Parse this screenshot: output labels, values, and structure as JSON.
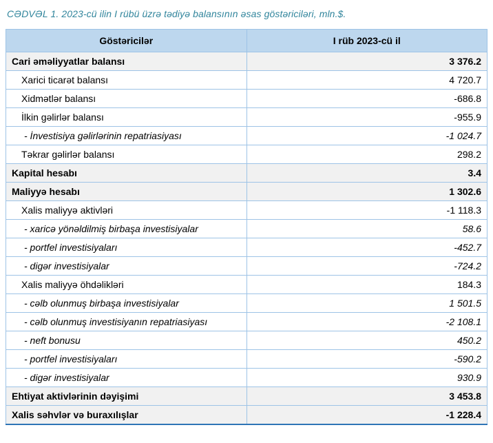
{
  "title": "CƏDVƏL 1. 2023-cü ilin I rübü üzrə tədiyə balansının əsas göstəriciləri, mln.$.",
  "colors": {
    "title_color": "#31859C",
    "header_bg": "#BDD7EE",
    "grid_border": "#9DC3E6",
    "bold_row_bg": "#F1F1F1",
    "bottom_border": "#2E75B6"
  },
  "table": {
    "columns": [
      "Göstəricilər",
      "I rüb 2023-cü il"
    ],
    "rows": [
      {
        "label": "Cari əməliyyatlar balansı",
        "value": "3 376.2",
        "style": "bold"
      },
      {
        "label": "Xarici ticarət balansı",
        "value": "4 720.7",
        "style": "normal"
      },
      {
        "label": "Xidmətlər balansı",
        "value": "-686.8",
        "style": "normal"
      },
      {
        "label": "İlkin gəlirlər balansı",
        "value": "-955.9",
        "style": "normal"
      },
      {
        "label": "- İnvestisiya gəlirlərinin repatriasiyası",
        "value": "-1 024.7",
        "style": "italic"
      },
      {
        "label": "Təkrar gəlirlər balansı",
        "value": "298.2",
        "style": "normal"
      },
      {
        "label": "Kapital hesabı",
        "value": "3.4",
        "style": "bold"
      },
      {
        "label": "Maliyyə hesabı",
        "value": "1 302.6",
        "style": "bold"
      },
      {
        "label": "Xalis maliyyə aktivləri",
        "value": "-1 118.3",
        "style": "normal"
      },
      {
        "label": "- xaricə yönəldilmiş birbaşa investisiyalar",
        "value": "58.6",
        "style": "italic"
      },
      {
        "label": "- portfel investisiyaları",
        "value": "-452.7",
        "style": "italic"
      },
      {
        "label": "- digər investisiyalar",
        "value": "-724.2",
        "style": "italic"
      },
      {
        "label": "Xalis maliyyə öhdəlikləri",
        "value": "184.3",
        "style": "normal"
      },
      {
        "label": "- cəlb olunmuş birbaşa investisiyalar",
        "value": "1 501.5",
        "style": "italic"
      },
      {
        "label": "- cəlb olunmuş investisiyanın repatriasiyası",
        "value": "-2 108.1",
        "style": "italic"
      },
      {
        "label": "- neft bonusu",
        "value": "450.2",
        "style": "italic"
      },
      {
        "label": "- portfel investisiyaları",
        "value": "-590.2",
        "style": "italic"
      },
      {
        "label": "- digər investisiyalar",
        "value": "930.9",
        "style": "italic"
      },
      {
        "label": "Ehtiyat aktivlərinin dəyişimi",
        "value": "3 453.8",
        "style": "bold"
      },
      {
        "label": "Xalis səhvlər və buraxılışlar",
        "value": "-1 228.4",
        "style": "bold"
      }
    ]
  }
}
